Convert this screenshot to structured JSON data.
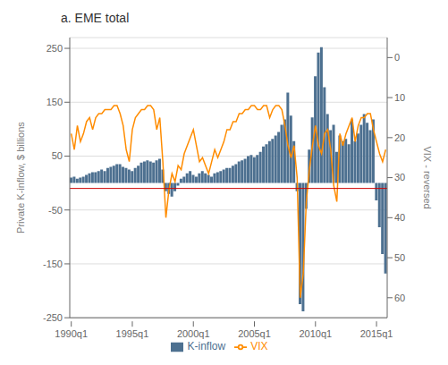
{
  "chart_data": {
    "type": "bar",
    "title": "a. EME total",
    "ylabel": "Private K-inflow, $ billions",
    "y2label": "VIX - reversed",
    "categories": [
      "1990q1",
      null,
      null,
      null,
      null,
      null,
      null,
      null,
      null,
      null,
      null,
      null,
      null,
      null,
      null,
      null,
      null,
      null,
      null,
      null,
      "1995q1",
      null,
      null,
      null,
      null,
      null,
      null,
      null,
      null,
      null,
      null,
      null,
      null,
      null,
      null,
      null,
      null,
      null,
      null,
      null,
      "2000q1",
      null,
      null,
      null,
      null,
      null,
      null,
      null,
      null,
      null,
      null,
      null,
      null,
      null,
      null,
      null,
      null,
      null,
      null,
      null,
      "2005q1",
      null,
      null,
      null,
      null,
      null,
      null,
      null,
      null,
      null,
      null,
      null,
      null,
      null,
      null,
      null,
      null,
      null,
      null,
      null,
      "2010q1",
      null,
      null,
      null,
      null,
      null,
      null,
      null,
      null,
      null,
      null,
      null,
      null,
      null,
      null,
      null,
      null,
      null,
      null,
      null,
      "2015q1",
      null,
      null,
      null
    ],
    "ylim": [
      -250,
      270
    ],
    "yticks": [
      -250,
      -150,
      -50,
      50,
      150,
      250
    ],
    "y2lim": [
      65,
      -5
    ],
    "y2ticks": [
      0,
      10,
      20,
      30,
      40,
      50,
      60
    ],
    "grid": true,
    "legend": "bottom",
    "hline": {
      "y": -10,
      "color": "#cc0000"
    },
    "series": [
      {
        "name": "K-inflow",
        "type": "bar",
        "color": "#4d7090",
        "values": [
          10,
          12,
          8,
          10,
          12,
          15,
          18,
          20,
          20,
          22,
          25,
          22,
          28,
          30,
          32,
          35,
          35,
          30,
          28,
          25,
          22,
          28,
          32,
          38,
          40,
          42,
          40,
          38,
          42,
          45,
          25,
          -15,
          -20,
          -25,
          -15,
          -5,
          8,
          12,
          18,
          22,
          15,
          12,
          18,
          22,
          18,
          15,
          12,
          18,
          20,
          22,
          25,
          28,
          28,
          32,
          35,
          40,
          42,
          45,
          50,
          52,
          48,
          52,
          58,
          68,
          72,
          78,
          82,
          88,
          95,
          108,
          118,
          168,
          125,
          78,
          -15,
          -225,
          -238,
          -48,
          62,
          122,
          198,
          242,
          252,
          178,
          128,
          98,
          108,
          58,
          88,
          78,
          82,
          72,
          118,
          78,
          92,
          108,
          128,
          112,
          98,
          118,
          -32,
          -82,
          -132,
          -168
        ]
      },
      {
        "name": "VIX",
        "type": "line",
        "color": "#ff8c00",
        "axis": "y2",
        "values": [
          19,
          23,
          17,
          21,
          19,
          16,
          15,
          18,
          15,
          14,
          14,
          13,
          13,
          13,
          12,
          12,
          14,
          17,
          23,
          26,
          18,
          15,
          14,
          13,
          13,
          12,
          12,
          13,
          18,
          15,
          26,
          40,
          33,
          29,
          31,
          27,
          28,
          24,
          22,
          20,
          18,
          22,
          26,
          25,
          27,
          29,
          26,
          23,
          25,
          23,
          21,
          18,
          18,
          16,
          16,
          14,
          14,
          13,
          13,
          12,
          12,
          13,
          13,
          12,
          12,
          15,
          13,
          12,
          12,
          13,
          17,
          22,
          25,
          22,
          30,
          60,
          54,
          36,
          28,
          22,
          17,
          22,
          24,
          19,
          18,
          23,
          32,
          36,
          19,
          22,
          19,
          17,
          15,
          21,
          17,
          15,
          15,
          14,
          14,
          18,
          21,
          24,
          26,
          23
        ]
      }
    ]
  }
}
